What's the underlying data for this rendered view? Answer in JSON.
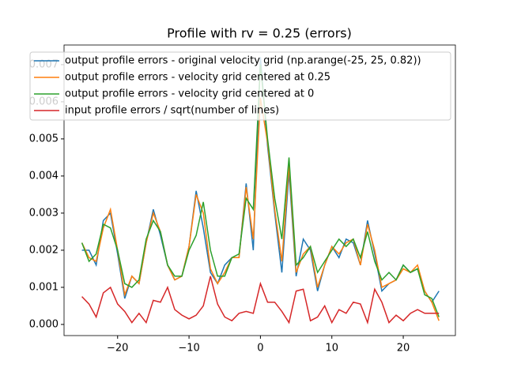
{
  "chart_data": {
    "type": "line",
    "title": "Profile with rv = 0.25 (errors)",
    "x": [
      -25,
      -24,
      -23,
      -22,
      -21,
      -20,
      -19,
      -18,
      -17,
      -16,
      -15,
      -14,
      -13,
      -12,
      -11,
      -10,
      -9,
      -8,
      -7,
      -6,
      -5,
      -4,
      -3,
      -2,
      -1,
      0,
      1,
      2,
      3,
      4,
      5,
      6,
      7,
      8,
      9,
      10,
      11,
      12,
      13,
      14,
      15,
      16,
      17,
      18,
      19,
      20,
      21,
      22,
      23,
      24,
      25
    ],
    "series": [
      {
        "name": "output profile errors - original velocity grid (np.arange(-25, 25, 0.82))",
        "color": "#1f77b4",
        "values": [
          0.002,
          0.002,
          0.0016,
          0.0028,
          0.003,
          0.0019,
          0.0007,
          0.0013,
          0.0011,
          0.0022,
          0.0031,
          0.0024,
          0.0016,
          0.0012,
          0.0013,
          0.0021,
          0.0036,
          0.0026,
          0.0014,
          0.0011,
          0.0016,
          0.0018,
          0.0018,
          0.0038,
          0.002,
          0.0072,
          0.0048,
          0.003,
          0.0014,
          0.0041,
          0.0013,
          0.0023,
          0.002,
          0.0009,
          0.0016,
          0.0021,
          0.0018,
          0.0023,
          0.0022,
          0.0016,
          0.0028,
          0.0019,
          0.0009,
          0.0011,
          0.0012,
          0.0016,
          0.0014,
          0.0015,
          0.0009,
          0.0006,
          0.0009
        ]
      },
      {
        "name": "output profile errors - velocity grid centered at 0.25",
        "color": "#ff7f0e",
        "values": [
          0.0022,
          0.0018,
          0.0017,
          0.0026,
          0.0031,
          0.002,
          0.0008,
          0.0013,
          0.0011,
          0.0022,
          0.003,
          0.0025,
          0.0016,
          0.0012,
          0.0013,
          0.0021,
          0.0035,
          0.003,
          0.0015,
          0.0011,
          0.0014,
          0.0018,
          0.0018,
          0.0037,
          0.0023,
          0.0061,
          0.0049,
          0.0031,
          0.0017,
          0.0043,
          0.0014,
          0.0019,
          0.0021,
          0.001,
          0.0016,
          0.0021,
          0.0019,
          0.0022,
          0.0023,
          0.0016,
          0.0027,
          0.002,
          0.001,
          0.0011,
          0.0012,
          0.0015,
          0.0014,
          0.0016,
          0.0009,
          0.0006,
          0.0001
        ]
      },
      {
        "name": "output profile errors - velocity grid centered at 0",
        "color": "#2ca02c",
        "values": [
          0.0022,
          0.0017,
          0.0019,
          0.0027,
          0.0026,
          0.002,
          0.0011,
          0.001,
          0.0012,
          0.0023,
          0.0028,
          0.0025,
          0.0016,
          0.0013,
          0.0013,
          0.002,
          0.0024,
          0.0033,
          0.002,
          0.0013,
          0.0013,
          0.0018,
          0.0019,
          0.0034,
          0.0031,
          0.007,
          0.005,
          0.0034,
          0.0023,
          0.0045,
          0.0016,
          0.0018,
          0.0021,
          0.0014,
          0.0017,
          0.002,
          0.0023,
          0.0021,
          0.0023,
          0.0018,
          0.0025,
          0.0017,
          0.0012,
          0.0014,
          0.0012,
          0.0016,
          0.0014,
          0.0015,
          0.0008,
          0.0007,
          0.0002
        ]
      },
      {
        "name": "input profile errors / sqrt(number of lines)",
        "color": "#d62728",
        "values": [
          0.00075,
          0.00055,
          0.0002,
          0.00085,
          0.001,
          0.00055,
          0.00035,
          5e-05,
          0.0003,
          5e-05,
          0.00065,
          0.0006,
          0.001,
          0.0004,
          0.00025,
          0.00015,
          0.00025,
          0.0005,
          0.0013,
          0.00055,
          0.0002,
          0.0001,
          0.0003,
          0.00035,
          0.0003,
          0.0011,
          0.0006,
          0.0006,
          0.00035,
          5e-05,
          0.0009,
          0.00095,
          0.0001,
          0.0002,
          0.0005,
          5e-05,
          0.0004,
          0.0003,
          0.0006,
          0.00055,
          5e-05,
          0.00095,
          0.0006,
          5e-05,
          0.00025,
          0.0001,
          0.0003,
          0.0004,
          0.0003,
          0.0003,
          0.0003
        ]
      }
    ],
    "xlim": [
      -27.5,
      27.3
    ],
    "ylim": [
      -0.0003,
      0.00753
    ],
    "xticks": [
      {
        "value": -20,
        "label": "−20"
      },
      {
        "value": -10,
        "label": "−10"
      },
      0,
      10,
      20
    ],
    "yticks": [
      {
        "value": 0,
        "label": "0.000"
      },
      0.001,
      0.002,
      0.003,
      0.004,
      0.005,
      0.006,
      0.007
    ],
    "legend": "upper left"
  }
}
